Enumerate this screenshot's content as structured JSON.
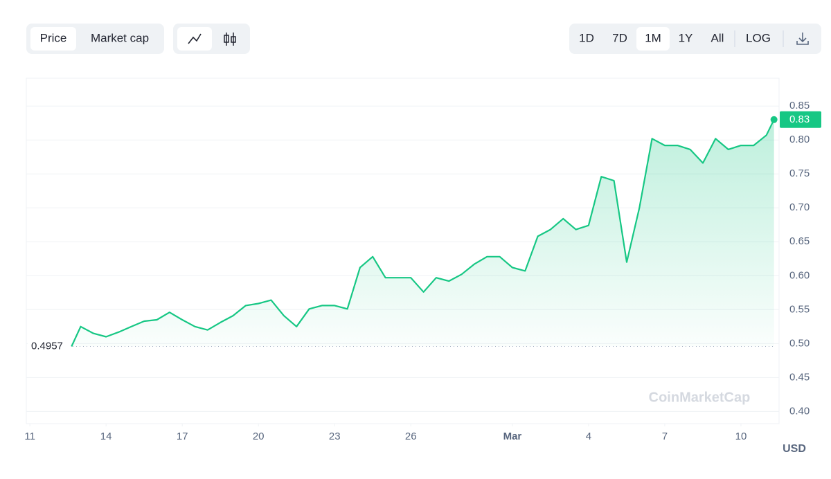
{
  "toolbar": {
    "metrics": [
      "Price",
      "Market cap"
    ],
    "ranges": [
      "1D",
      "7D",
      "1M",
      "1Y",
      "All"
    ],
    "active_metric": "Price",
    "active_range": "1M",
    "scale": "LOG"
  },
  "chart_data": {
    "type": "area",
    "x": [
      1.64,
      2,
      2.5,
      3,
      3.5,
      4,
      4.5,
      5,
      5.5,
      6,
      6.5,
      7,
      7.5,
      8,
      8.5,
      9,
      9.5,
      10,
      10.5,
      11,
      11.5,
      12,
      12.5,
      13,
      13.5,
      14,
      14.5,
      15,
      15.5,
      16,
      16.5,
      17,
      17.5,
      18,
      18.5,
      19,
      19.5,
      20,
      20.5,
      21,
      21.5,
      22,
      22.5,
      23,
      23.5,
      24,
      24.5,
      25,
      25.5,
      26,
      26.5,
      27,
      27.5,
      28,
      28.5,
      29,
      29.3
    ],
    "values": [
      0.4957,
      0.525,
      0.515,
      0.51,
      0.517,
      0.525,
      0.533,
      0.535,
      0.546,
      0.535,
      0.525,
      0.52,
      0.531,
      0.541,
      0.556,
      0.559,
      0.564,
      0.541,
      0.525,
      0.551,
      0.556,
      0.556,
      0.551,
      0.612,
      0.628,
      0.597,
      0.597,
      0.597,
      0.576,
      0.597,
      0.592,
      0.602,
      0.617,
      0.628,
      0.628,
      0.612,
      0.607,
      0.658,
      0.668,
      0.684,
      0.668,
      0.674,
      0.746,
      0.74,
      0.62,
      0.7,
      0.802,
      0.792,
      0.792,
      0.786,
      0.766,
      0.802,
      0.786,
      0.792,
      0.792,
      0.807,
      0.83
    ],
    "color": "#16c784",
    "xlim": [
      -0.14,
      29.5
    ],
    "xticks": [
      {
        "value": 0,
        "label": "11"
      },
      {
        "value": 3,
        "label": "14"
      },
      {
        "value": 6,
        "label": "17"
      },
      {
        "value": 9,
        "label": "20"
      },
      {
        "value": 12,
        "label": "23"
      },
      {
        "value": 15,
        "label": "26"
      },
      {
        "value": 19,
        "label": "Mar"
      },
      {
        "value": 22,
        "label": "4"
      },
      {
        "value": 25,
        "label": "7"
      },
      {
        "value": 28,
        "label": "10"
      }
    ],
    "ylim": [
      0.382,
      0.891
    ],
    "yticks": [
      {
        "value": 0.4,
        "label": "0.40"
      },
      0.45,
      {
        "value": 0.5,
        "label": "0.50"
      },
      0.55,
      {
        "value": 0.6,
        "label": "0.60"
      },
      0.65,
      {
        "value": 0.7,
        "label": "0.70"
      },
      0.75,
      {
        "value": 0.8,
        "label": "0.80"
      },
      0.85
    ],
    "grid": true,
    "start_value": 0.4957,
    "last_value": 0.83,
    "unit": "USD",
    "watermark": "CoinMarketCap"
  }
}
